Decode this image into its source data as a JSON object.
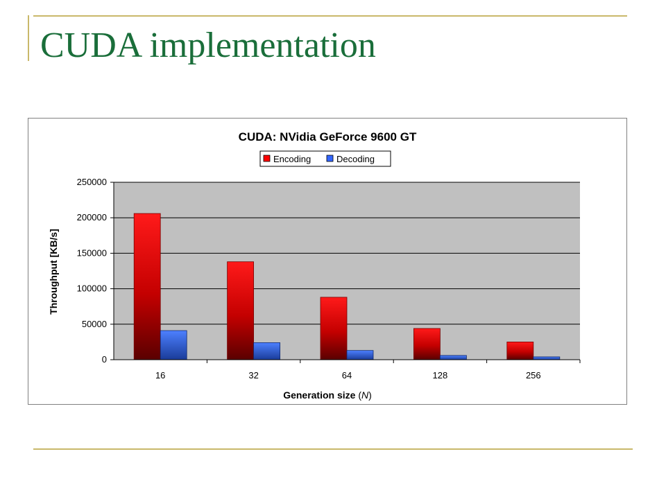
{
  "slide": {
    "title": "CUDA implementation"
  },
  "colors": {
    "accent_line": "#c9b86a",
    "title_text": "#1a6e3a",
    "plot_background": "#c0c0c0",
    "encoding": "#ff0000",
    "decoding": "#3366ff"
  },
  "chart_data": {
    "type": "bar",
    "title": "CUDA: NVidia GeForce 9600 GT",
    "xlabel": "Generation size",
    "xlabel_symbol": "N",
    "ylabel": "Throughput [KB/s]",
    "categories": [
      "16",
      "32",
      "64",
      "128",
      "256"
    ],
    "series": [
      {
        "name": "Encoding",
        "values": [
          206000,
          138000,
          88000,
          44000,
          25000
        ]
      },
      {
        "name": "Decoding",
        "values": [
          41000,
          24000,
          13000,
          6000,
          4000
        ]
      }
    ],
    "ylim": [
      0,
      250000
    ],
    "yticks": [
      0,
      50000,
      100000,
      150000,
      200000,
      250000
    ],
    "grid": true,
    "legend_position": "top"
  }
}
